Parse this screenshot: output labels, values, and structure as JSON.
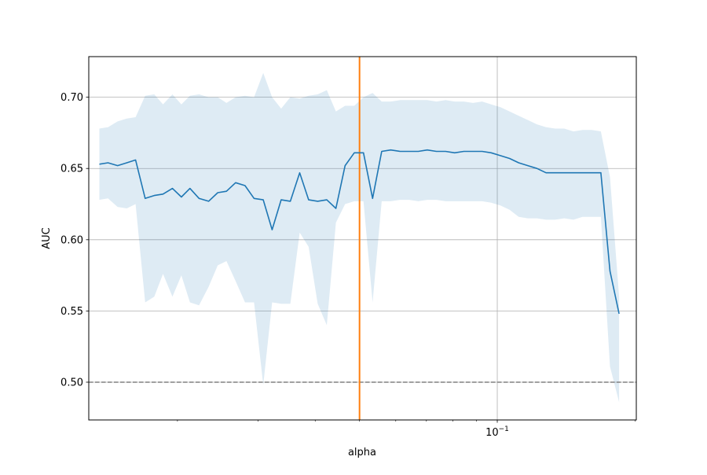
{
  "chart_data": {
    "type": "line",
    "xlabel": "alpha",
    "ylabel": "AUC",
    "xscale": "log",
    "xlim": [
      0.0128,
      0.2013
    ],
    "ylim": [
      0.4735,
      0.7285
    ],
    "grid": true,
    "x_ticks": [
      {
        "value": 0.1,
        "label": "10^-1"
      }
    ],
    "x_minor_ticks": [
      0.02,
      0.03,
      0.04,
      0.05,
      0.06,
      0.07,
      0.08,
      0.09,
      0.2
    ],
    "y_ticks": [
      0.5,
      0.55,
      0.6,
      0.65,
      0.7
    ],
    "y_tick_labels": [
      "0.50",
      "0.55",
      "0.60",
      "0.65",
      "0.70"
    ],
    "reference_lines": {
      "baseline_auc": 0.5,
      "baseline_style": "dashed",
      "baseline_color": "#808080",
      "selected_alpha": 0.05,
      "selected_color": "#ff7f0e"
    },
    "colors": {
      "series": "#1f77b4",
      "band": "#1f77b4"
    },
    "series": [
      {
        "x": [
          0.0135,
          0.0141,
          0.0148,
          0.0155,
          0.0162,
          0.017,
          0.0178,
          0.0186,
          0.0195,
          0.0204,
          0.0213,
          0.0223,
          0.0234,
          0.0245,
          0.0256,
          0.0268,
          0.0281,
          0.0294,
          0.0308,
          0.0322,
          0.0337,
          0.0353,
          0.037,
          0.0387,
          0.0405,
          0.0424,
          0.0444,
          0.0465,
          0.0487,
          0.051,
          0.0534,
          0.0559,
          0.0585,
          0.0613,
          0.0642,
          0.0672,
          0.0703,
          0.0736,
          0.0771,
          0.0807,
          0.0845,
          0.0885,
          0.0927,
          0.097,
          0.1016,
          0.1064,
          0.1114,
          0.1166,
          0.1221,
          0.1278,
          0.1338,
          0.1401,
          0.1467,
          0.1536,
          0.1608,
          0.1684,
          0.1763,
          0.1846
        ],
        "y": [
          0.653,
          0.654,
          0.652,
          0.654,
          0.656,
          0.629,
          0.631,
          0.632,
          0.636,
          0.63,
          0.636,
          0.629,
          0.627,
          0.633,
          0.634,
          0.64,
          0.638,
          0.629,
          0.628,
          0.607,
          0.628,
          0.627,
          0.647,
          0.628,
          0.627,
          0.628,
          0.622,
          0.652,
          0.661,
          0.661,
          0.629,
          0.662,
          0.663,
          0.662,
          0.662,
          0.662,
          0.663,
          0.662,
          0.662,
          0.661,
          0.662,
          0.662,
          0.662,
          0.661,
          0.659,
          0.657,
          0.654,
          0.652,
          0.65,
          0.647,
          0.647,
          0.647,
          0.647,
          0.647,
          0.647,
          0.647,
          0.578,
          0.548
        ],
        "lower": [
          0.628,
          0.629,
          0.623,
          0.622,
          0.625,
          0.556,
          0.56,
          0.576,
          0.56,
          0.575,
          0.556,
          0.554,
          0.567,
          0.582,
          0.585,
          0.571,
          0.556,
          0.556,
          0.498,
          0.556,
          0.555,
          0.555,
          0.605,
          0.595,
          0.555,
          0.54,
          0.612,
          0.625,
          0.627,
          0.627,
          0.556,
          0.627,
          0.627,
          0.628,
          0.628,
          0.627,
          0.628,
          0.628,
          0.627,
          0.627,
          0.627,
          0.627,
          0.627,
          0.626,
          0.624,
          0.621,
          0.616,
          0.615,
          0.615,
          0.614,
          0.614,
          0.615,
          0.614,
          0.616,
          0.616,
          0.616,
          0.511,
          0.486
        ],
        "upper": [
          0.678,
          0.679,
          0.683,
          0.685,
          0.686,
          0.701,
          0.702,
          0.695,
          0.702,
          0.695,
          0.701,
          0.702,
          0.7,
          0.7,
          0.696,
          0.7,
          0.701,
          0.7,
          0.717,
          0.7,
          0.692,
          0.7,
          0.699,
          0.701,
          0.702,
          0.705,
          0.69,
          0.694,
          0.694,
          0.7,
          0.703,
          0.697,
          0.697,
          0.698,
          0.698,
          0.698,
          0.698,
          0.697,
          0.698,
          0.697,
          0.697,
          0.696,
          0.697,
          0.695,
          0.693,
          0.69,
          0.687,
          0.684,
          0.681,
          0.679,
          0.678,
          0.678,
          0.676,
          0.677,
          0.677,
          0.676,
          0.644,
          0.56
        ]
      }
    ]
  }
}
